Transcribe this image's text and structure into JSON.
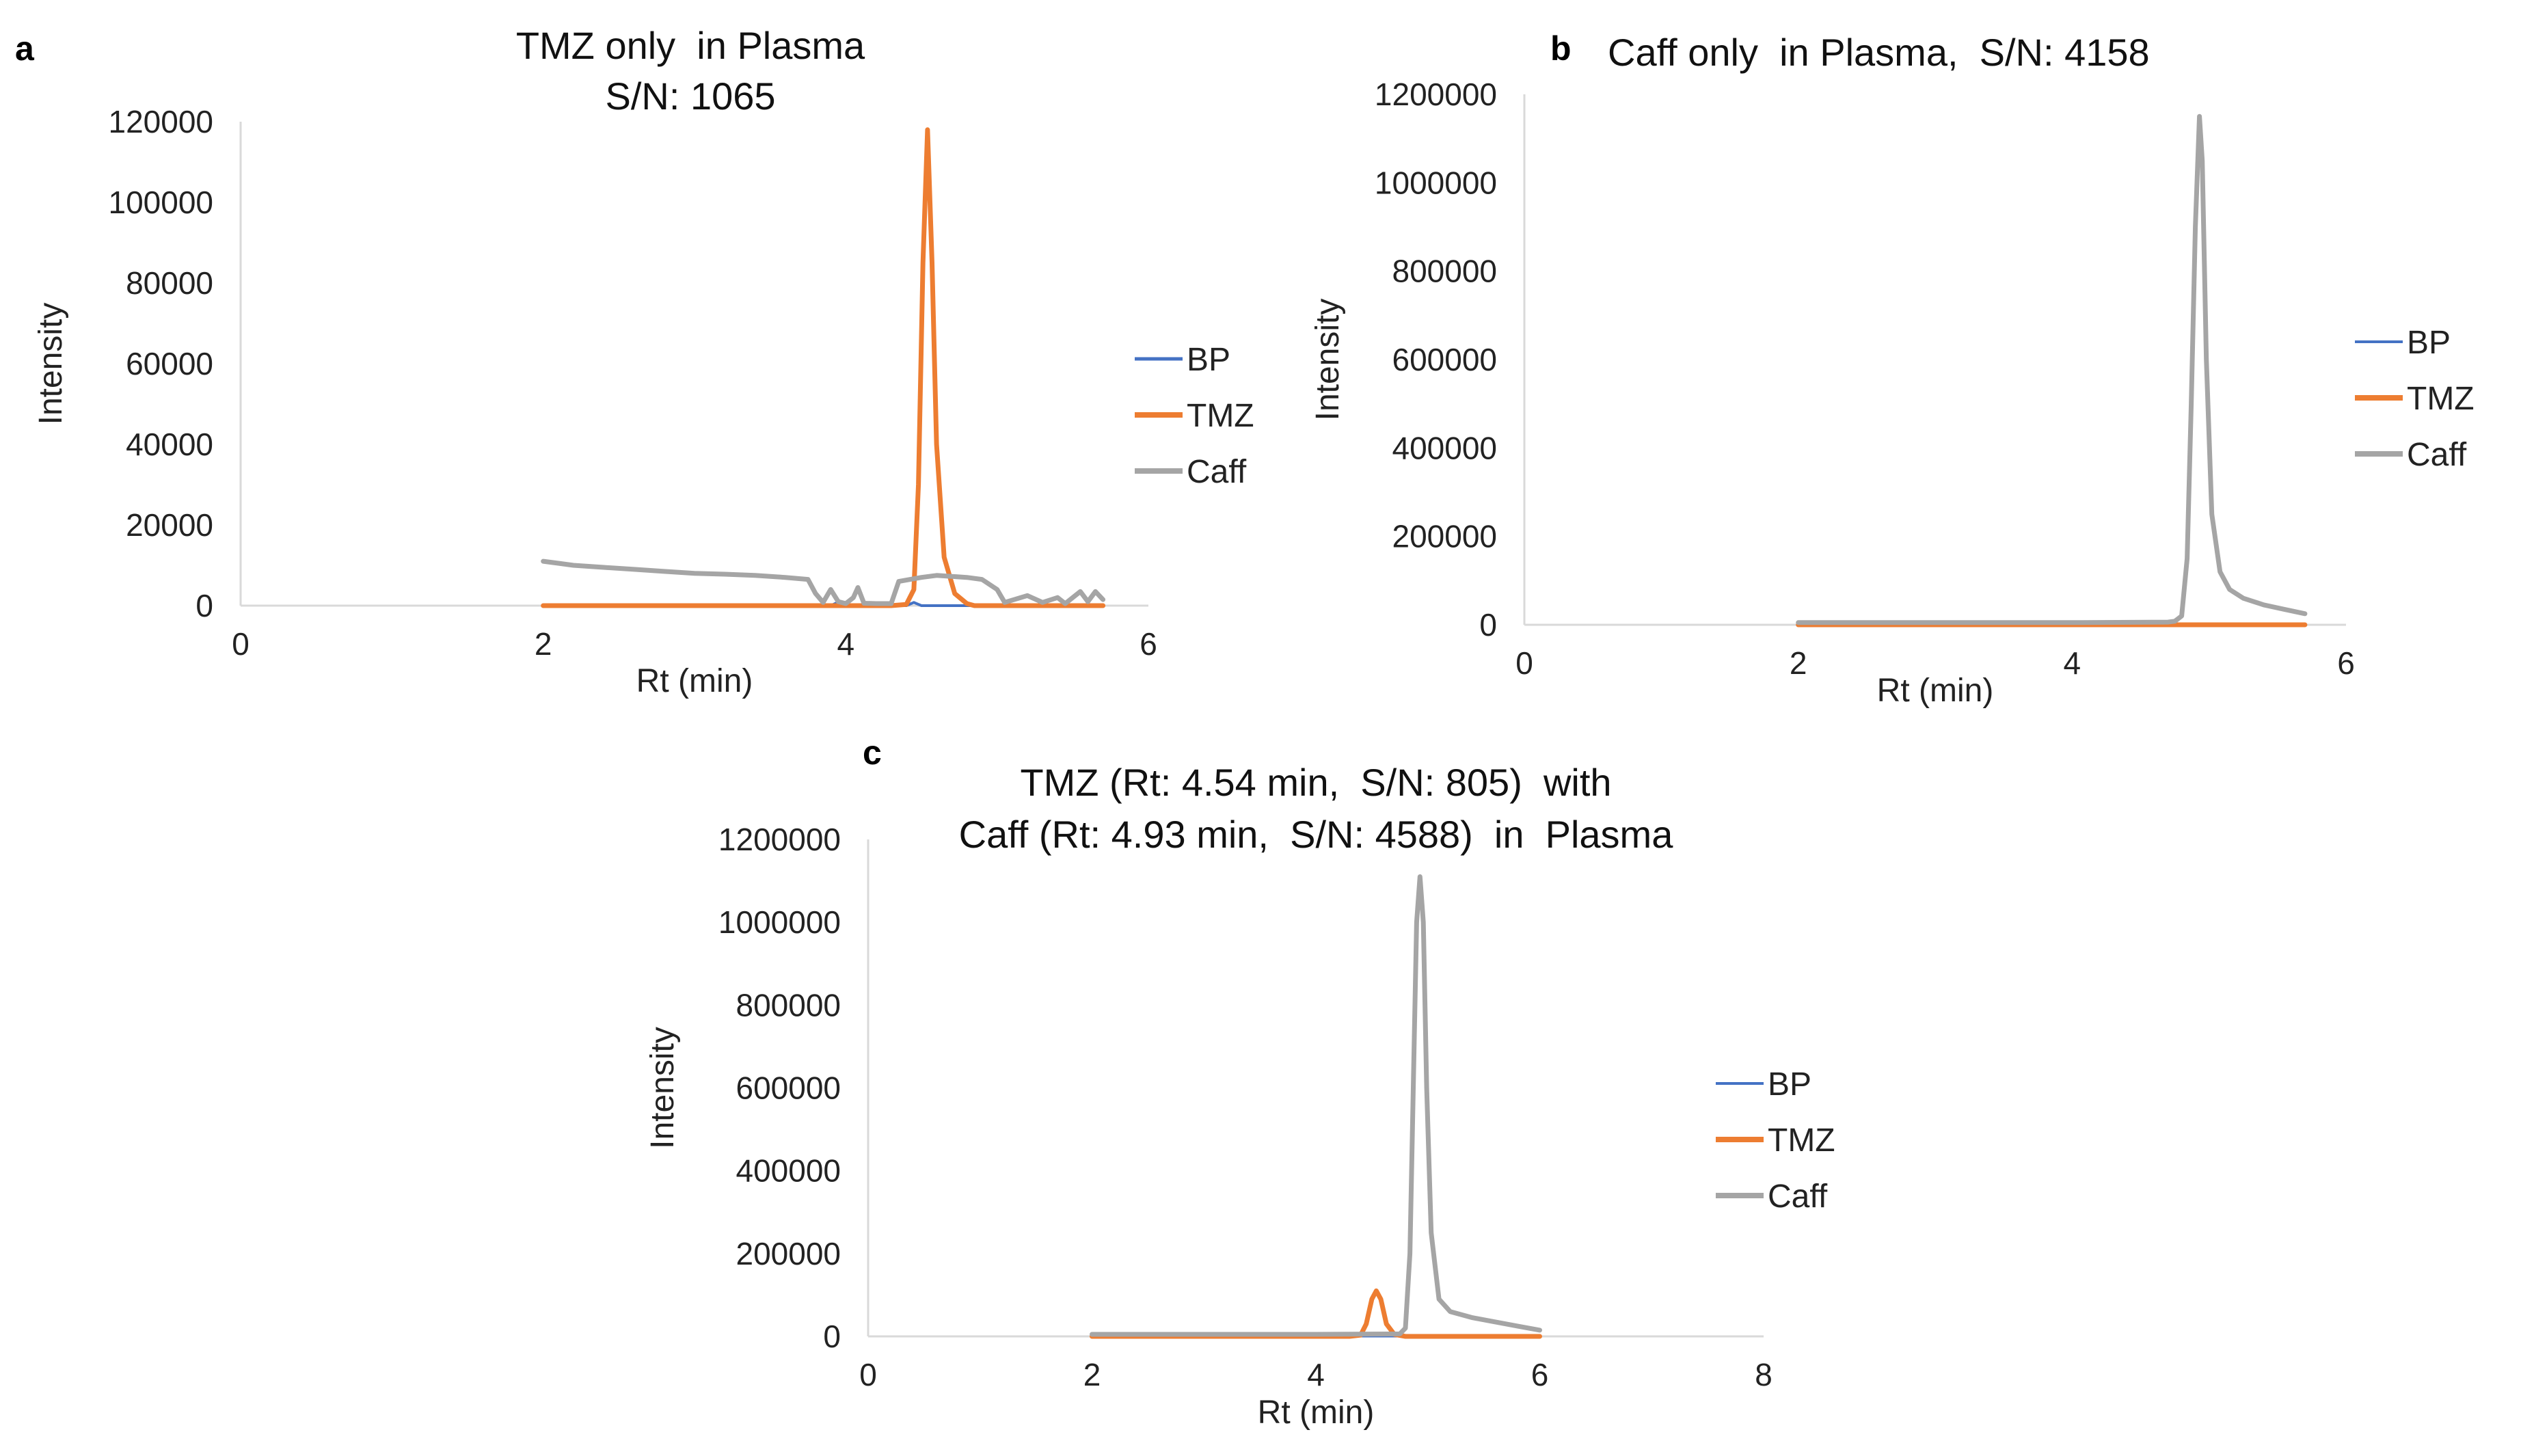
{
  "chart_data": [
    {
      "panel_label": "a",
      "type": "line",
      "title": [
        "TMZ only  in Plasma",
        "S/N: 1065"
      ],
      "xlabel": "Rt (min)",
      "ylabel": "Intensity",
      "xlim": [
        0,
        6
      ],
      "ylim": [
        0,
        120000
      ],
      "xticks": [
        0,
        2,
        4,
        6
      ],
      "yticks": [
        0,
        20000,
        40000,
        60000,
        80000,
        100000,
        120000
      ],
      "x_tick_labels": [
        "0",
        "2",
        "4",
        "6"
      ],
      "y_tick_labels": [
        "0",
        "20000",
        "40000",
        "60000",
        "80000",
        "100000",
        "120000"
      ],
      "legend": [
        "BP",
        "TMZ",
        "Caff"
      ],
      "legend_position": "right",
      "series": [
        {
          "name": "BP",
          "color": "#4472c4",
          "points": [
            [
              2.0,
              0
            ],
            [
              3.9,
              0
            ],
            [
              3.95,
              900
            ],
            [
              4.0,
              0
            ],
            [
              4.4,
              0
            ],
            [
              4.45,
              800
            ],
            [
              4.5,
              0
            ],
            [
              5.7,
              0
            ]
          ]
        },
        {
          "name": "TMZ",
          "color": "#ed7d31",
          "points": [
            [
              2.0,
              0
            ],
            [
              4.3,
              0
            ],
            [
              4.4,
              300
            ],
            [
              4.45,
              4000
            ],
            [
              4.48,
              30000
            ],
            [
              4.51,
              85000
            ],
            [
              4.54,
              118000
            ],
            [
              4.57,
              85000
            ],
            [
              4.6,
              40000
            ],
            [
              4.65,
              12000
            ],
            [
              4.72,
              3000
            ],
            [
              4.8,
              500
            ],
            [
              4.85,
              0
            ],
            [
              5.7,
              0
            ]
          ]
        },
        {
          "name": "Caff",
          "color": "#a5a5a5",
          "points": [
            [
              2.0,
              11000
            ],
            [
              2.1,
              10500
            ],
            [
              2.2,
              10000
            ],
            [
              2.4,
              9500
            ],
            [
              2.6,
              9000
            ],
            [
              2.8,
              8500
            ],
            [
              3.0,
              8000
            ],
            [
              3.2,
              7800
            ],
            [
              3.4,
              7500
            ],
            [
              3.6,
              7000
            ],
            [
              3.75,
              6500
            ],
            [
              3.8,
              3000
            ],
            [
              3.85,
              800
            ],
            [
              3.9,
              4000
            ],
            [
              3.95,
              1000
            ],
            [
              4.0,
              500
            ],
            [
              4.05,
              2000
            ],
            [
              4.08,
              4500
            ],
            [
              4.12,
              600
            ],
            [
              4.2,
              500
            ],
            [
              4.3,
              500
            ],
            [
              4.35,
              6000
            ],
            [
              4.5,
              7000
            ],
            [
              4.6,
              7500
            ],
            [
              4.8,
              7000
            ],
            [
              4.9,
              6500
            ],
            [
              5.0,
              4000
            ],
            [
              5.05,
              800
            ],
            [
              5.2,
              2500
            ],
            [
              5.3,
              800
            ],
            [
              5.4,
              2000
            ],
            [
              5.45,
              500
            ],
            [
              5.55,
              3500
            ],
            [
              5.6,
              1000
            ],
            [
              5.65,
              3500
            ],
            [
              5.7,
              1500
            ]
          ]
        }
      ]
    },
    {
      "panel_label": "b",
      "type": "line",
      "title": [
        "Caff only  in Plasma,  S/N: 4158"
      ],
      "xlabel": "Rt (min)",
      "ylabel": "Intensity",
      "xlim": [
        0,
        6
      ],
      "ylim": [
        0,
        1200000
      ],
      "xticks": [
        0,
        2,
        4,
        6
      ],
      "yticks": [
        0,
        200000,
        400000,
        600000,
        800000,
        1000000,
        1200000
      ],
      "x_tick_labels": [
        "0",
        "2",
        "4",
        "6"
      ],
      "y_tick_labels": [
        "0",
        "200000",
        "400000",
        "600000",
        "800000",
        "1000000",
        "1200000"
      ],
      "legend": [
        "BP",
        "TMZ",
        "Caff"
      ],
      "legend_position": "right",
      "series": [
        {
          "name": "BP",
          "color": "#4472c4",
          "points": [
            [
              2.0,
              0
            ],
            [
              5.7,
              0
            ]
          ]
        },
        {
          "name": "TMZ",
          "color": "#ed7d31",
          "points": [
            [
              2.0,
              0
            ],
            [
              5.7,
              0
            ]
          ]
        },
        {
          "name": "Caff",
          "color": "#a5a5a5",
          "points": [
            [
              2.0,
              5000
            ],
            [
              3.0,
              5000
            ],
            [
              4.0,
              5000
            ],
            [
              4.7,
              6000
            ],
            [
              4.75,
              8000
            ],
            [
              4.8,
              20000
            ],
            [
              4.84,
              150000
            ],
            [
              4.87,
              500000
            ],
            [
              4.9,
              900000
            ],
            [
              4.93,
              1150000
            ],
            [
              4.95,
              1050000
            ],
            [
              4.98,
              600000
            ],
            [
              5.02,
              250000
            ],
            [
              5.08,
              120000
            ],
            [
              5.15,
              80000
            ],
            [
              5.25,
              60000
            ],
            [
              5.4,
              45000
            ],
            [
              5.55,
              35000
            ],
            [
              5.7,
              25000
            ]
          ]
        }
      ]
    },
    {
      "panel_label": "c",
      "type": "line",
      "title": [
        "TMZ (Rt: 4.54 min,  S/N: 805)  with",
        "Caff (Rt: 4.93 min,  S/N: 4588)  in  Plasma"
      ],
      "xlabel": "Rt (min)",
      "ylabel": "Intensity",
      "xlim": [
        0,
        8
      ],
      "ylim": [
        0,
        1200000
      ],
      "xticks": [
        0,
        2,
        4,
        6,
        8
      ],
      "yticks": [
        0,
        200000,
        400000,
        600000,
        800000,
        1000000,
        1200000
      ],
      "x_tick_labels": [
        "0",
        "2",
        "4",
        "6",
        "8"
      ],
      "y_tick_labels": [
        "0",
        "200000",
        "400000",
        "600000",
        "800000",
        "1000000",
        "1200000"
      ],
      "legend": [
        "BP",
        "TMZ",
        "Caff"
      ],
      "legend_position": "right",
      "series": [
        {
          "name": "BP",
          "color": "#4472c4",
          "points": [
            [
              2.0,
              0
            ],
            [
              6.0,
              0
            ]
          ]
        },
        {
          "name": "TMZ",
          "color": "#ed7d31",
          "points": [
            [
              2.0,
              0
            ],
            [
              4.3,
              0
            ],
            [
              4.4,
              3000
            ],
            [
              4.45,
              30000
            ],
            [
              4.5,
              90000
            ],
            [
              4.54,
              110000
            ],
            [
              4.58,
              90000
            ],
            [
              4.63,
              30000
            ],
            [
              4.7,
              5000
            ],
            [
              4.8,
              0
            ],
            [
              6.0,
              0
            ]
          ]
        },
        {
          "name": "Caff",
          "color": "#a5a5a5",
          "points": [
            [
              2.0,
              5000
            ],
            [
              3.0,
              5000
            ],
            [
              4.0,
              5000
            ],
            [
              4.75,
              6000
            ],
            [
              4.8,
              20000
            ],
            [
              4.84,
              200000
            ],
            [
              4.87,
              600000
            ],
            [
              4.9,
              1000000
            ],
            [
              4.93,
              1110000
            ],
            [
              4.96,
              1000000
            ],
            [
              4.99,
              600000
            ],
            [
              5.03,
              250000
            ],
            [
              5.1,
              90000
            ],
            [
              5.2,
              60000
            ],
            [
              5.4,
              45000
            ],
            [
              5.6,
              35000
            ],
            [
              5.8,
              25000
            ],
            [
              6.0,
              15000
            ]
          ]
        }
      ]
    }
  ]
}
